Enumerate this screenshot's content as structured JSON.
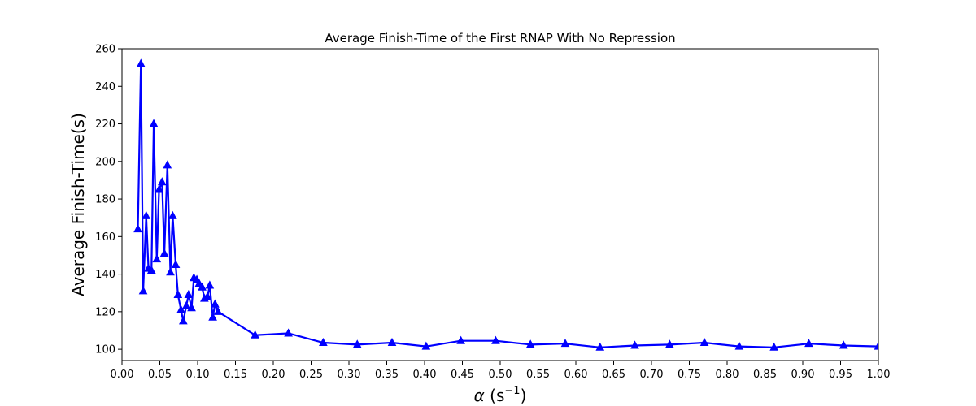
{
  "chart_data": {
    "type": "line",
    "title": "Average Finish-Time of the First RNAP With No Repression",
    "xlabel_symbol": "α",
    "xlabel_unit": "s",
    "xlabel_exp": "−1",
    "ylabel": "Average Finish-Time(s)",
    "xlim": [
      0.0,
      1.0
    ],
    "ylim": [
      94,
      260
    ],
    "xticks": [
      "0.00",
      "0.05",
      "0.10",
      "0.15",
      "0.20",
      "0.25",
      "0.30",
      "0.35",
      "0.40",
      "0.45",
      "0.50",
      "0.55",
      "0.60",
      "0.65",
      "0.70",
      "0.75",
      "0.80",
      "0.85",
      "0.90",
      "0.95",
      "1.00"
    ],
    "yticks": [
      "100",
      "120",
      "140",
      "160",
      "180",
      "200",
      "220",
      "240",
      "260"
    ],
    "grid": false,
    "line_color": "#0000ff",
    "marker": "triangle-up",
    "series": [
      {
        "x": [
          0.021,
          0.025,
          0.028,
          0.032,
          0.035,
          0.039,
          0.042,
          0.046,
          0.049,
          0.053,
          0.056,
          0.06,
          0.064,
          0.067,
          0.071,
          0.074,
          0.078,
          0.081,
          0.085,
          0.088,
          0.092,
          0.095,
          0.099,
          0.102,
          0.106,
          0.109,
          0.113,
          0.116,
          0.12,
          0.123,
          0.127,
          0.176,
          0.22,
          0.266,
          0.311,
          0.357,
          0.402,
          0.448,
          0.494,
          0.54,
          0.586,
          0.632,
          0.678,
          0.724,
          0.77,
          0.816,
          0.862,
          0.908,
          0.954,
          1.0
        ],
        "y": [
          164,
          252,
          131,
          171,
          143,
          142,
          220,
          148,
          185,
          189,
          151,
          198,
          141,
          171,
          145,
          129,
          121,
          115,
          123,
          129,
          122,
          138,
          137,
          135,
          133,
          127,
          128,
          134,
          117,
          124,
          120,
          107.5,
          108.5,
          103.5,
          102.5,
          103.5,
          101.5,
          104.5,
          104.5,
          102.5,
          103,
          101,
          102,
          102.5,
          103.5,
          101.5,
          101,
          103,
          102,
          101.5
        ]
      }
    ]
  }
}
